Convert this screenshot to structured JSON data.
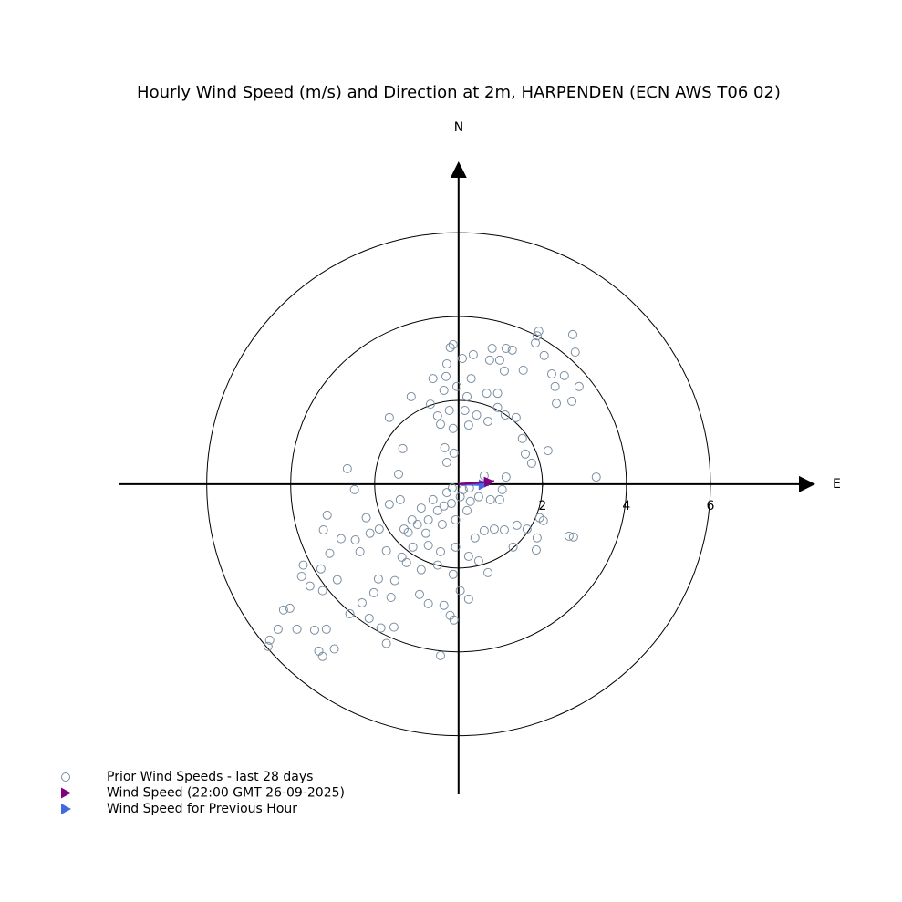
{
  "chart_data": {
    "type": "scatter",
    "title": "Hourly Wind Speed (m/s) and Direction at 2m, HARPENDEN (ECN AWS T06 02)",
    "north_label": "N",
    "east_label": "E",
    "xlim": [
      -8.1,
      8.5
    ],
    "ylim": [
      -7.4,
      7.7
    ],
    "xticks": [
      2,
      4,
      6
    ],
    "rings": [
      2,
      4,
      6
    ],
    "series": [
      {
        "name": "Prior Wind Speeds - last 28 days",
        "color": "#7b8ea0",
        "x": [
          1.91,
          1.87,
          2.72,
          2.78,
          1.83,
          2.04,
          2.22,
          2.52,
          2.3,
          2.87,
          2.7,
          2.33,
          2.13,
          1.59,
          1.74,
          1.52,
          1.37,
          1.11,
          1.54,
          1.28,
          1.13,
          0.8,
          0.98,
          0.74,
          1.09,
          0.35,
          0.09,
          -0.2,
          -0.13,
          -0.28,
          -0.3,
          -0.61,
          0.3,
          -0.04,
          -0.35,
          -1.13,
          -0.67,
          0.2,
          0.67,
          0.93,
          0.93,
          0.43,
          0.15,
          -0.22,
          -0.5,
          -0.43,
          -0.13,
          0.24,
          0.7,
          -1.65,
          -1.33,
          -0.33,
          -0.11,
          -0.28,
          -2.65,
          -1.43,
          -1.39,
          -1.65,
          -2.48,
          -2.2,
          -3.13,
          -3.22,
          -2.8,
          -2.46,
          -2.35,
          -2.11,
          -1.89,
          -3.07,
          -3.7,
          -3.74,
          -3.54,
          -3.28,
          -2.89,
          -3.24,
          -4.17,
          -4.02,
          -4.3,
          -4.5,
          -4.54,
          -3.85,
          -3.43,
          -3.15,
          -3.33,
          -3.24,
          -2.96,
          -2.59,
          -2.13,
          -1.72,
          -1.85,
          -1.54,
          -2.02,
          -2.3,
          -1.61,
          -0.93,
          -0.72,
          -0.43,
          -0.2,
          -0.11,
          -0.35,
          0.24,
          0.04,
          -0.13,
          -0.5,
          -0.89,
          -1.24,
          -1.52,
          -1.91,
          -1.72,
          -1.35,
          -1.09,
          -0.72,
          -0.43,
          -0.07,
          0.24,
          0.48,
          0.7,
          0.39,
          0.61,
          0.85,
          1.09,
          1.39,
          1.63,
          1.3,
          1.85,
          1.87,
          2.02,
          1.93,
          2.63,
          2.74,
          3.28,
          1.13,
          0.61,
          1.04,
          0.98,
          0.76,
          0.48,
          0.28,
          0.04,
          -0.17,
          -0.5,
          -0.72,
          -0.98,
          -1.2,
          -0.78,
          -0.39,
          -0.07,
          0.2,
          -0.28,
          -0.15,
          0.11,
          0.26,
          -0.35,
          -0.61,
          -0.89,
          -1.11,
          -1.3
        ],
        "y": [
          3.65,
          3.54,
          3.57,
          3.15,
          3.37,
          3.07,
          2.63,
          2.59,
          2.33,
          2.33,
          1.98,
          1.93,
          0.8,
          0.72,
          0.5,
          1.09,
          1.59,
          1.65,
          2.72,
          3.2,
          3.24,
          3.24,
          2.96,
          2.96,
          2.7,
          3.09,
          3.0,
          3.26,
          3.33,
          2.87,
          2.57,
          2.52,
          2.52,
          2.33,
          2.24,
          2.09,
          1.91,
          2.09,
          2.17,
          2.17,
          1.83,
          1.65,
          1.76,
          1.76,
          1.63,
          1.43,
          1.33,
          1.41,
          1.5,
          1.59,
          0.85,
          0.87,
          0.74,
          0.52,
          0.37,
          0.24,
          -0.37,
          -0.48,
          -0.13,
          -0.8,
          -0.74,
          -1.09,
          -1.3,
          -1.33,
          -1.61,
          -1.17,
          -1.07,
          -1.65,
          -1.93,
          -2.2,
          -2.43,
          -2.02,
          -2.28,
          -2.54,
          -3.0,
          -2.96,
          -3.46,
          -3.72,
          -3.87,
          -3.46,
          -3.48,
          -3.46,
          -3.98,
          -4.11,
          -3.93,
          -3.09,
          -3.2,
          -3.8,
          -3.43,
          -3.41,
          -2.59,
          -2.83,
          -2.7,
          -2.63,
          -2.85,
          -4.09,
          -3.13,
          -3.24,
          -2.89,
          -2.74,
          -2.54,
          -2.15,
          -1.93,
          -2.04,
          -1.87,
          -2.3,
          -2.26,
          -1.59,
          -1.74,
          -1.5,
          -1.46,
          -1.61,
          -1.5,
          -1.72,
          -1.83,
          -2.11,
          -1.28,
          -1.11,
          -1.07,
          -1.09,
          -0.98,
          -1.07,
          -1.5,
          -1.57,
          -1.28,
          -0.87,
          -0.8,
          -1.24,
          -1.26,
          0.17,
          0.17,
          0.2,
          -0.13,
          -0.37,
          -0.37,
          -0.3,
          -0.41,
          -0.3,
          -0.46,
          -0.63,
          -0.85,
          -0.96,
          -1.15,
          -1.17,
          -0.96,
          -0.85,
          -0.63,
          -0.2,
          -0.09,
          -0.13,
          -0.09,
          -0.52,
          -0.37,
          -0.57,
          -0.85,
          -1.07
        ]
      },
      {
        "name": "Wind Speed (22:00 GMT 26-09-2025)",
        "color": "#800080",
        "x": [
          0.85
        ],
        "y": [
          0.07
        ]
      },
      {
        "name": "Wind Speed for Previous Hour",
        "color": "#4169e1",
        "x": [
          0.72
        ],
        "y": [
          -0.02
        ]
      }
    ]
  }
}
